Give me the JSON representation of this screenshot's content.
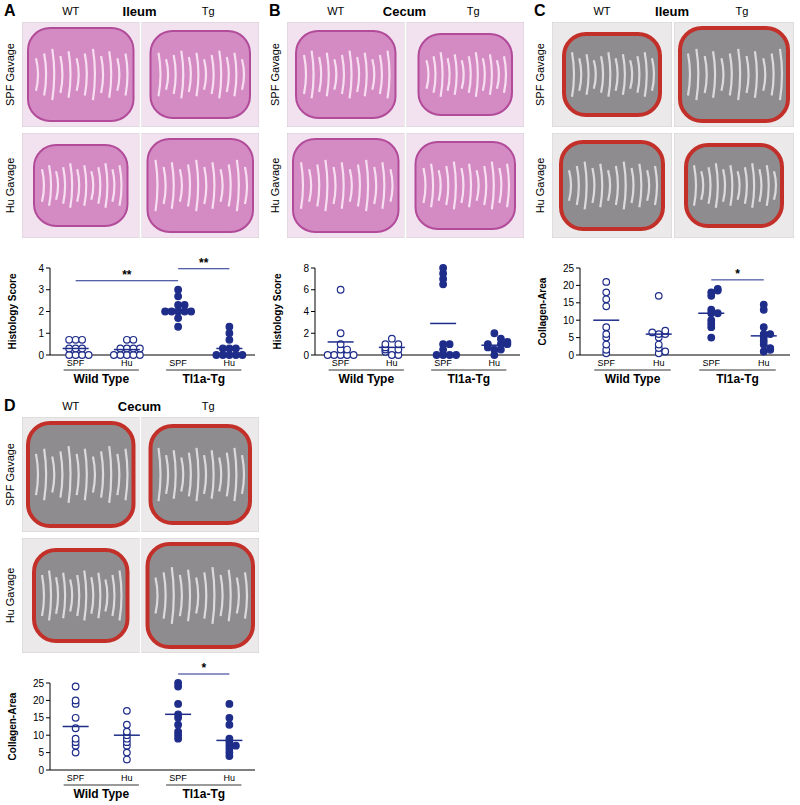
{
  "chart_data": [
    {
      "type": "scatter",
      "panel_label": "A",
      "title": "Ileum",
      "column_labels": [
        "WT",
        "Tg"
      ],
      "row_labels": [
        "SPF Gavage",
        "Hu Gavage"
      ],
      "ylabel": "Histology Score",
      "categories": [
        "SPF",
        "Hu"
      ],
      "ylim": [
        0,
        4
      ],
      "yticks": [
        0,
        1,
        2,
        3,
        4
      ],
      "series": [
        {
          "name": "Wild Type",
          "color": "#1f2d8a",
          "marker": "open",
          "values": [
            [
              0,
              0,
              0,
              0,
              0.3,
              0.3,
              0.3,
              0.7,
              0.7,
              0.7
            ],
            [
              0,
              0,
              0,
              0,
              0,
              0.3,
              0.3,
              0.3,
              0.3,
              0.7,
              0.7
            ]
          ],
          "means": [
            0.3,
            0.25
          ]
        },
        {
          "name": "Tl1a-Tg",
          "color": "#1f2d8a",
          "marker": "filled",
          "values": [
            [
              1.3,
              1.7,
              2,
              2,
              2,
              2,
              2,
              2.3,
              2.3,
              2.7,
              3
            ],
            [
              0,
              0,
              0,
              0,
              0,
              0.3,
              0.3,
              0.3,
              0.7,
              1,
              1.3
            ]
          ],
          "means": [
            2.1,
            0.3
          ]
        }
      ],
      "significance": [
        {
          "label": "**",
          "between": [
            0,
            2
          ]
        },
        {
          "label": "**",
          "between": [
            2,
            3
          ]
        }
      ]
    },
    {
      "type": "scatter",
      "panel_label": "B",
      "title": "Cecum",
      "column_labels": [
        "WT",
        "Tg"
      ],
      "row_labels": [
        "SPF Gavage",
        "Hu Gavage"
      ],
      "ylabel": "Histology Score",
      "categories": [
        "SPF",
        "Hu"
      ],
      "ylim": [
        0,
        8
      ],
      "yticks": [
        0,
        2,
        4,
        6,
        8
      ],
      "series": [
        {
          "name": "Wild Type",
          "color": "#1f2d8a",
          "marker": "open",
          "values": [
            [
              0,
              0,
              0,
              0,
              0,
              0.5,
              0.5,
              1,
              2,
              6
            ],
            [
              0,
              0,
              0.3,
              0.5,
              0.5,
              0.7,
              1,
              1,
              1.5
            ]
          ],
          "means": [
            1.2,
            0.7
          ]
        },
        {
          "name": "Tl1a-Tg",
          "color": "#1f2d8a",
          "marker": "filled",
          "values": [
            [
              0,
              0,
              0,
              0,
              0.5,
              1,
              1,
              6.5,
              7,
              7.5,
              8
            ],
            [
              0,
              0.5,
              0.5,
              0.7,
              1,
              1,
              1,
              1.2,
              1.5,
              2
            ]
          ],
          "means": [
            2.9,
            0.9
          ]
        }
      ],
      "significance": []
    },
    {
      "type": "scatter",
      "panel_label": "C",
      "title": "Ileum",
      "column_labels": [
        "WT",
        "Tg"
      ],
      "row_labels": [
        "SPF Gavage",
        "Hu Gavage"
      ],
      "ylabel": "Collagen-Area",
      "categories": [
        "SPF",
        "Hu"
      ],
      "ylim": [
        0,
        25
      ],
      "yticks": [
        0,
        5,
        10,
        15,
        20,
        25
      ],
      "series": [
        {
          "name": "Wild Type",
          "color": "#1f2d8a",
          "marker": "open",
          "values": [
            [
              0.5,
              1.5,
              3,
              5,
              6,
              8,
              14,
              16,
              18,
              21
            ],
            [
              0.5,
              1,
              2,
              3,
              5,
              6,
              6,
              6.5,
              7,
              17
            ]
          ],
          "means": [
            10,
            6
          ]
        },
        {
          "name": "Tl1a-Tg",
          "color": "#1f2d8a",
          "marker": "filled",
          "values": [
            [
              5,
              8,
              9,
              10,
              12,
              12,
              13,
              17,
              18,
              18.5,
              19
            ],
            [
              1,
              1.5,
              2,
              3,
              4,
              5,
              6,
              6,
              8,
              13,
              14.5
            ]
          ],
          "means": [
            12,
            5.5
          ]
        }
      ],
      "significance": [
        {
          "label": "*",
          "between": [
            2,
            3
          ]
        }
      ]
    },
    {
      "type": "scatter",
      "panel_label": "D",
      "title": "Cecum",
      "column_labels": [
        "WT",
        "Tg"
      ],
      "row_labels": [
        "SPF Gavage",
        "Hu Gavage"
      ],
      "ylabel": "Collagen-Area",
      "categories": [
        "SPF",
        "Hu"
      ],
      "ylim": [
        0,
        25
      ],
      "yticks": [
        0,
        5,
        10,
        15,
        20,
        25
      ],
      "series": [
        {
          "name": "Wild Type",
          "color": "#1f2d8a",
          "marker": "open",
          "values": [
            [
              5,
              7,
              8,
              9,
              12,
              15,
              19,
              20,
              24
            ],
            [
              3,
              5,
              7,
              8,
              9,
              10,
              11,
              13,
              17
            ]
          ],
          "means": [
            12.5,
            10
          ]
        },
        {
          "name": "Tl1a-Tg",
          "color": "#1f2d8a",
          "marker": "filled",
          "values": [
            [
              9,
              10,
              11,
              13,
              15,
              16,
              19,
              24,
              25
            ],
            [
              4,
              5,
              6,
              7,
              7,
              8,
              9,
              13,
              15,
              19
            ]
          ],
          "means": [
            16,
            8.5
          ]
        }
      ],
      "significance": [
        {
          "label": "*",
          "between": [
            2,
            3
          ]
        }
      ]
    }
  ]
}
